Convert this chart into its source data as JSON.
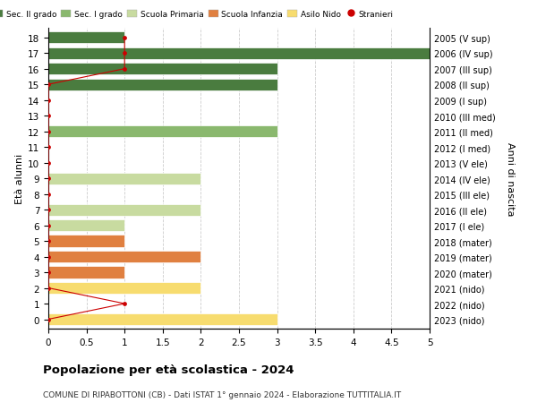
{
  "ages": [
    0,
    1,
    2,
    3,
    4,
    5,
    6,
    7,
    8,
    9,
    10,
    11,
    12,
    13,
    14,
    15,
    16,
    17,
    18
  ],
  "right_labels": [
    "2023 (nido)",
    "2022 (nido)",
    "2021 (nido)",
    "2020 (mater)",
    "2019 (mater)",
    "2018 (mater)",
    "2017 (I ele)",
    "2016 (II ele)",
    "2015 (III ele)",
    "2014 (IV ele)",
    "2013 (V ele)",
    "2012 (I med)",
    "2011 (II med)",
    "2010 (III med)",
    "2009 (I sup)",
    "2008 (II sup)",
    "2007 (III sup)",
    "2006 (IV sup)",
    "2005 (V sup)"
  ],
  "bar_values": [
    3,
    0,
    2,
    1,
    2,
    1,
    1,
    2,
    0,
    2,
    0,
    0,
    3,
    0,
    0,
    3,
    3,
    5,
    1
  ],
  "bar_colors": [
    "#f7dc6f",
    "#f7dc6f",
    "#f7dc6f",
    "#e08040",
    "#e08040",
    "#e08040",
    "#c8dba0",
    "#c8dba0",
    "#c8dba0",
    "#c8dba0",
    "#c8dba0",
    "#8ab86e",
    "#8ab86e",
    "#8ab86e",
    "#4a7c3f",
    "#4a7c3f",
    "#4a7c3f",
    "#4a7c3f",
    "#4a7c3f"
  ],
  "stranieri_values": [
    0,
    1,
    0,
    0,
    0,
    0,
    0,
    0,
    0,
    0,
    0,
    0,
    0,
    0,
    0,
    0,
    1,
    1,
    1
  ],
  "xlim": [
    0,
    5.0
  ],
  "xticks": [
    0,
    0.5,
    1.0,
    1.5,
    2.0,
    2.5,
    3.0,
    3.5,
    4.0,
    4.5,
    5.0
  ],
  "ylabel_left": "Età alunni",
  "ylabel_right": "Anni di nascita",
  "title": "Popolazione per età scolastica - 2024",
  "subtitle": "COMUNE DI RIPABOTTONI (CB) - Dati ISTAT 1° gennaio 2024 - Elaborazione TUTTITALIA.IT",
  "legend_items": [
    {
      "label": "Sec. II grado",
      "color": "#4a7c3f"
    },
    {
      "label": "Sec. I grado",
      "color": "#8ab86e"
    },
    {
      "label": "Scuola Primaria",
      "color": "#c8dba0"
    },
    {
      "label": "Scuola Infanzia",
      "color": "#e08040"
    },
    {
      "label": "Asilo Nido",
      "color": "#f7dc6f"
    },
    {
      "label": "Stranieri",
      "color": "#cc0000"
    }
  ],
  "bg_color": "#ffffff",
  "grid_color": "#cccccc",
  "bar_height": 0.75
}
